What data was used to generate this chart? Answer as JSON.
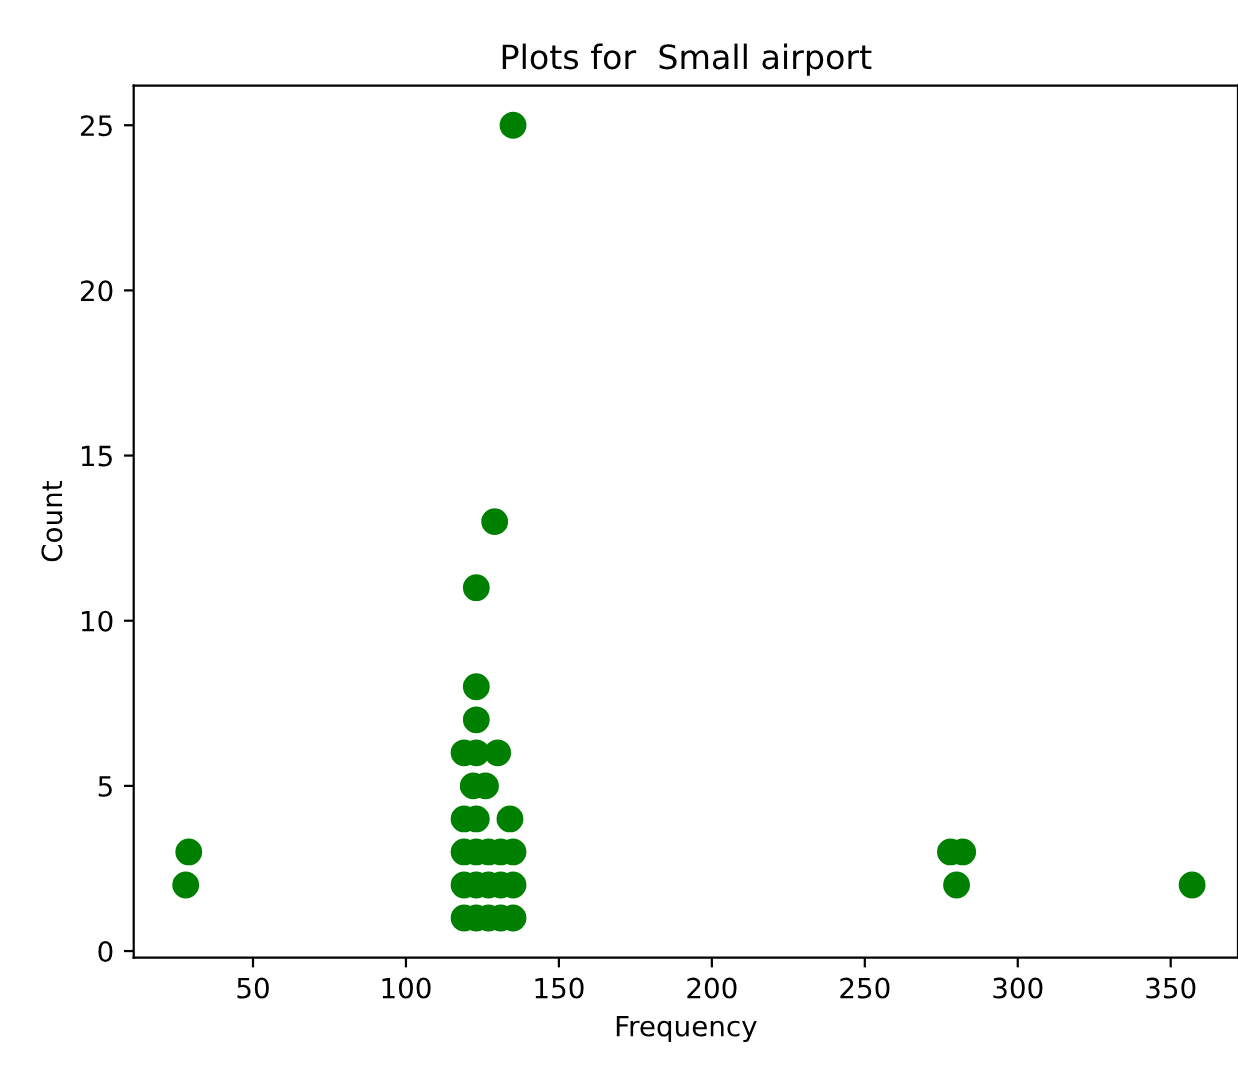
{
  "chart_data": {
    "type": "scatter",
    "title": "Plots for  Small airport",
    "xlabel": "Frequency",
    "ylabel": "Count",
    "x": [
      119,
      123,
      127,
      131,
      135,
      119,
      123,
      127,
      131,
      135,
      119,
      123,
      127,
      131,
      135,
      119,
      123,
      134,
      122,
      126,
      119,
      123,
      130,
      123,
      123,
      123,
      129,
      135,
      28,
      29,
      278,
      282,
      280,
      357
    ],
    "values": [
      1,
      1,
      1,
      1,
      1,
      2,
      2,
      2,
      2,
      2,
      3,
      3,
      3,
      3,
      3,
      4,
      4,
      4,
      5,
      5,
      6,
      6,
      6,
      7,
      8,
      11,
      13,
      25,
      2,
      3,
      3,
      3,
      2,
      2
    ],
    "color": "#008000",
    "marker": "circle",
    "xlim": [
      11,
      372
    ],
    "xticks": [
      50,
      100,
      150,
      200,
      250,
      300,
      350
    ],
    "ylim": [
      -0.2,
      26.2
    ],
    "yticks": [
      0,
      5,
      10,
      15,
      20,
      25
    ],
    "grid": false,
    "legend": false
  }
}
